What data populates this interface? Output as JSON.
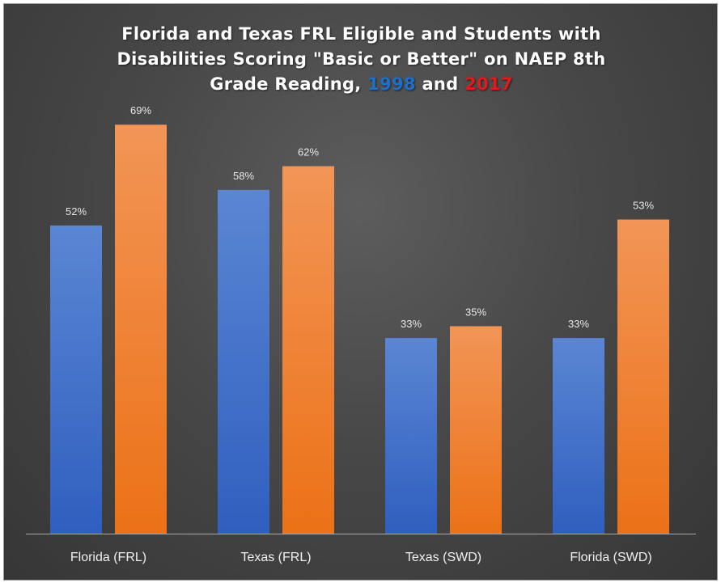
{
  "chart_data": {
    "type": "bar",
    "title": {
      "line1": "Florida and Texas FRL Eligible and Students with",
      "line2": "Disabilities Scoring \"Basic or Better\" on NAEP 8th",
      "line3_prefix": "Grade Reading, ",
      "year1": "1998",
      "connector": " and ",
      "year2": "2017"
    },
    "categories": [
      "Florida (FRL)",
      "Texas (FRL)",
      "Texas (SWD)",
      "Florida (SWD)"
    ],
    "series": [
      {
        "name": "1998",
        "values": [
          52,
          58,
          33,
          33
        ],
        "labels": [
          "52%",
          "58%",
          "33%",
          "33%"
        ]
      },
      {
        "name": "2017",
        "values": [
          69,
          62,
          35,
          53
        ],
        "labels": [
          "69%",
          "62%",
          "35%",
          "53%"
        ]
      }
    ],
    "ylim": [
      0,
      85
    ],
    "grid": false,
    "legend": "none",
    "colors": {
      "series_1998_top": "#5b86d4",
      "series_1998_bottom": "#2f5fbf",
      "series_2017_top": "#f29556",
      "series_2017_bottom": "#ec7117",
      "year1_text": "#1f6ec9",
      "year2_text": "#e01b1b"
    }
  }
}
